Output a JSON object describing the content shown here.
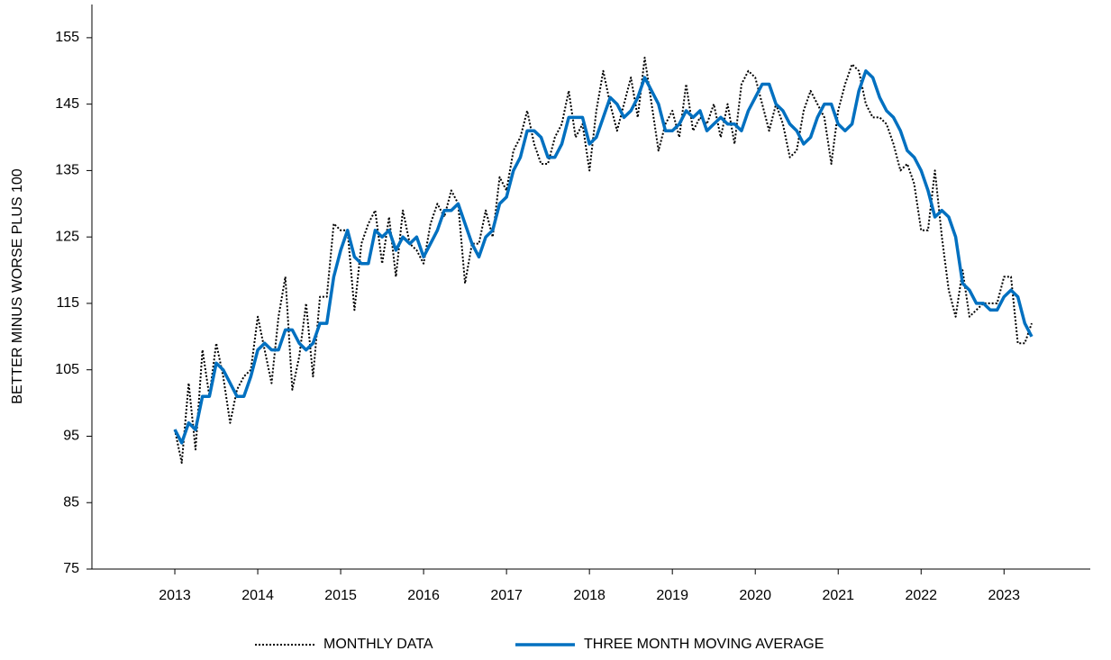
{
  "chart_data": {
    "type": "line",
    "y_label": "BETTER MINUS WORSE PLUS 100",
    "x": [
      2013,
      2013.0833,
      2013.1667,
      2013.25,
      2013.3333,
      2013.4167,
      2013.5,
      2013.5833,
      2013.6667,
      2013.75,
      2013.8333,
      2013.9167,
      2014,
      2014.0833,
      2014.1667,
      2014.25,
      2014.3333,
      2014.4167,
      2014.5,
      2014.5833,
      2014.6667,
      2014.75,
      2014.8333,
      2014.9167,
      2015,
      2015.0833,
      2015.1667,
      2015.25,
      2015.3333,
      2015.4167,
      2015.5,
      2015.5833,
      2015.6667,
      2015.75,
      2015.8333,
      2015.9167,
      2016,
      2016.0833,
      2016.1667,
      2016.25,
      2016.3333,
      2016.4167,
      2016.5,
      2016.5833,
      2016.6667,
      2016.75,
      2016.8333,
      2016.9167,
      2017,
      2017.0833,
      2017.1667,
      2017.25,
      2017.3333,
      2017.4167,
      2017.5,
      2017.5833,
      2017.6667,
      2017.75,
      2017.8333,
      2017.9167,
      2018,
      2018.0833,
      2018.1667,
      2018.25,
      2018.3333,
      2018.4167,
      2018.5,
      2018.5833,
      2018.6667,
      2018.75,
      2018.8333,
      2018.9167,
      2019,
      2019.0833,
      2019.1667,
      2019.25,
      2019.3333,
      2019.4167,
      2019.5,
      2019.5833,
      2019.6667,
      2019.75,
      2019.8333,
      2019.9167,
      2020,
      2020.0833,
      2020.1667,
      2020.25,
      2020.3333,
      2020.4167,
      2020.5,
      2020.5833,
      2020.6667,
      2020.75,
      2020.8333,
      2020.9167,
      2021,
      2021.0833,
      2021.1667,
      2021.25,
      2021.3333,
      2021.4167,
      2021.5,
      2021.5833,
      2021.6667,
      2021.75,
      2021.8333,
      2021.9167,
      2022,
      2022.0833,
      2022.1667,
      2022.25,
      2022.3333,
      2022.4167,
      2022.5,
      2022.5833,
      2022.6667,
      2022.75,
      2022.8333,
      2022.9167,
      2023,
      2023.0833,
      2023.1667,
      2023.25,
      2023.3333
    ],
    "series": [
      {
        "name": "MONTHLY DATA",
        "color": "#000000",
        "style": "dotted",
        "values": [
          96,
          91,
          103,
          93,
          108,
          101,
          109,
          104,
          97,
          102,
          104,
          105,
          113,
          108,
          103,
          113,
          119,
          102,
          107,
          115,
          104,
          116,
          116,
          127,
          126,
          126,
          114,
          124,
          127,
          129,
          121,
          128,
          119,
          129,
          124,
          123,
          121,
          127,
          130,
          128,
          132,
          130,
          118,
          124,
          124,
          129,
          125,
          134,
          132,
          138,
          140,
          144,
          139,
          136,
          136,
          140,
          142,
          147,
          140,
          142,
          135,
          144,
          150,
          145,
          141,
          145,
          149,
          143,
          152,
          145,
          138,
          142,
          144,
          140,
          148,
          141,
          143,
          142,
          145,
          140,
          145,
          139,
          148,
          150,
          149,
          145,
          141,
          145,
          142,
          137,
          138,
          144,
          147,
          145,
          143,
          136,
          144,
          148,
          151,
          150,
          145,
          143,
          143,
          142,
          139,
          135,
          136,
          133,
          126,
          126,
          135,
          125,
          117,
          113,
          120,
          113,
          114,
          115,
          115,
          115,
          119,
          119,
          109,
          109,
          112
        ]
      },
      {
        "name": "THREE MONTH MOVING AVERAGE",
        "color": "#0070c0",
        "style": "solid",
        "values": [
          96,
          94,
          97,
          96,
          101,
          101,
          106,
          105,
          103,
          101,
          101,
          104,
          108,
          109,
          108,
          108,
          111,
          111,
          109,
          108,
          109,
          112,
          112,
          119,
          123,
          126,
          122,
          121,
          121,
          126,
          125,
          126,
          123,
          125,
          124,
          125,
          122,
          124,
          126,
          129,
          129,
          130,
          127,
          124,
          122,
          125,
          126,
          130,
          131,
          135,
          137,
          141,
          141,
          140,
          137,
          137,
          139,
          143,
          143,
          143,
          139,
          140,
          143,
          146,
          145,
          143,
          144,
          146,
          149,
          147,
          145,
          141,
          141,
          142,
          144,
          143,
          144,
          141,
          142,
          143,
          142,
          142,
          141,
          144,
          146,
          148,
          148,
          145,
          144,
          142,
          141,
          139,
          140,
          143,
          145,
          145,
          142,
          141,
          142,
          147,
          150,
          149,
          146,
          144,
          143,
          141,
          138,
          137,
          135,
          132,
          128,
          129,
          128,
          125,
          118,
          117,
          115,
          115,
          114,
          114,
          116,
          117,
          116,
          112,
          110
        ]
      }
    ],
    "xlim": [
      2012,
      2024.04
    ],
    "xticks": [
      2013,
      2014,
      2015,
      2016,
      2017,
      2018,
      2019,
      2020,
      2021,
      2022,
      2023
    ],
    "ylim": [
      75,
      160
    ],
    "yticks": [
      75,
      85,
      95,
      105,
      115,
      125,
      135,
      145,
      155
    ],
    "grid": false,
    "legend": "bottom"
  }
}
